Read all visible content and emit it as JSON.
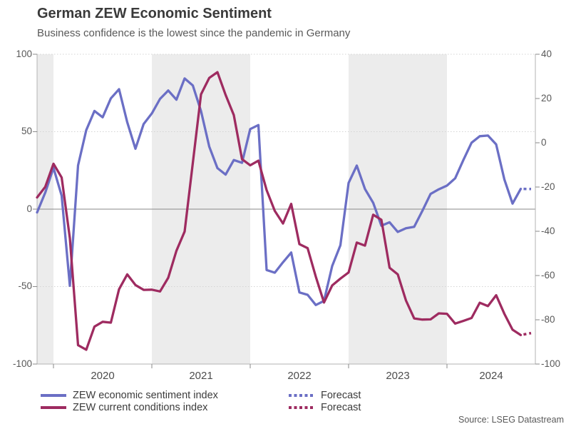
{
  "chart_data": {
    "type": "line",
    "title": "German ZEW Economic Sentiment",
    "subtitle": "Business confidence is the lowest since the pandemic in Germany",
    "source": "Source: LSEG Datastream",
    "x_axis": {
      "tick_labels": [
        "2020",
        "2021",
        "2022",
        "2023",
        "2024"
      ],
      "shaded_years": [
        "2021",
        "2023"
      ],
      "frequency": "monthly",
      "start_month_offset": -2
    },
    "y_axis_left": {
      "tick_labels": [
        "100",
        "50",
        "0",
        "-50",
        "-100"
      ],
      "range": [
        -100,
        100
      ],
      "gridlines_at": [
        100,
        50,
        -50
      ],
      "zero_line": true
    },
    "y_axis_right": {
      "tick_labels": [
        "40",
        "20",
        "0",
        "-20",
        "-40",
        "-60",
        "-80",
        "-100"
      ],
      "range": [
        -100,
        40
      ]
    },
    "series": [
      {
        "name": "ZEW economic sentiment index",
        "axis": "left",
        "color": "#6b6fc5",
        "values": [
          -2.1,
          10.7,
          26.7,
          8.7,
          -49.5,
          28.2,
          51.0,
          63.4,
          59.3,
          71.5,
          77.4,
          56.1,
          39.0,
          55.0,
          61.8,
          71.2,
          76.6,
          70.7,
          84.4,
          79.8,
          63.3,
          40.4,
          26.5,
          22.3,
          31.7,
          29.9,
          51.7,
          54.3,
          -39.3,
          -41.0,
          -34.3,
          -28.0,
          -53.8,
          -55.3,
          -61.9,
          -59.2,
          -36.7,
          -23.3,
          16.9,
          28.1,
          13.0,
          4.1,
          -10.7,
          -8.5,
          -14.7,
          -12.3,
          -11.4,
          -1.1,
          9.8,
          12.8,
          15.2,
          19.9,
          31.7,
          42.9,
          47.1,
          47.5,
          41.8,
          19.2,
          3.6,
          13.1
        ],
        "forecast": 13.0
      },
      {
        "name": "ZEW current conditions index",
        "axis": "right",
        "color": "#9e2b60",
        "values": [
          -24.7,
          -19.9,
          -9.5,
          -15.7,
          -43.1,
          -91.5,
          -93.5,
          -83.1,
          -80.9,
          -81.3,
          -66.2,
          -59.5,
          -64.3,
          -66.5,
          -66.4,
          -67.2,
          -61.0,
          -48.8,
          -40.1,
          -9.1,
          21.9,
          29.3,
          31.9,
          21.6,
          12.5,
          -7.4,
          -10.2,
          -8.1,
          -21.4,
          -30.8,
          -36.5,
          -27.6,
          -45.8,
          -47.6,
          -60.5,
          -72.2,
          -64.5,
          -61.4,
          -58.6,
          -45.1,
          -46.5,
          -32.5,
          -34.8,
          -56.5,
          -59.5,
          -71.3,
          -79.4,
          -79.9,
          -79.8,
          -77.1,
          -77.3,
          -81.7,
          -80.5,
          -79.2,
          -72.3,
          -73.8,
          -68.9,
          -77.3,
          -84.5,
          -86.9
        ],
        "forecast": -86.0
      }
    ],
    "legend": [
      {
        "label": "ZEW economic sentiment index",
        "style": "solid",
        "color": "#6b6fc5"
      },
      {
        "label": "ZEW current conditions index",
        "style": "solid",
        "color": "#9e2b60"
      },
      {
        "label": "Forecast",
        "style": "dotted",
        "color": "#6b6fc5"
      },
      {
        "label": "Forecast",
        "style": "dotted",
        "color": "#9e2b60"
      }
    ],
    "colors": {
      "band": "#ececec",
      "grid": "#d4d4d4",
      "zero_line": "#8a8a8a",
      "axis": "#b3b3b3",
      "tick": "#8a8a8a"
    }
  }
}
